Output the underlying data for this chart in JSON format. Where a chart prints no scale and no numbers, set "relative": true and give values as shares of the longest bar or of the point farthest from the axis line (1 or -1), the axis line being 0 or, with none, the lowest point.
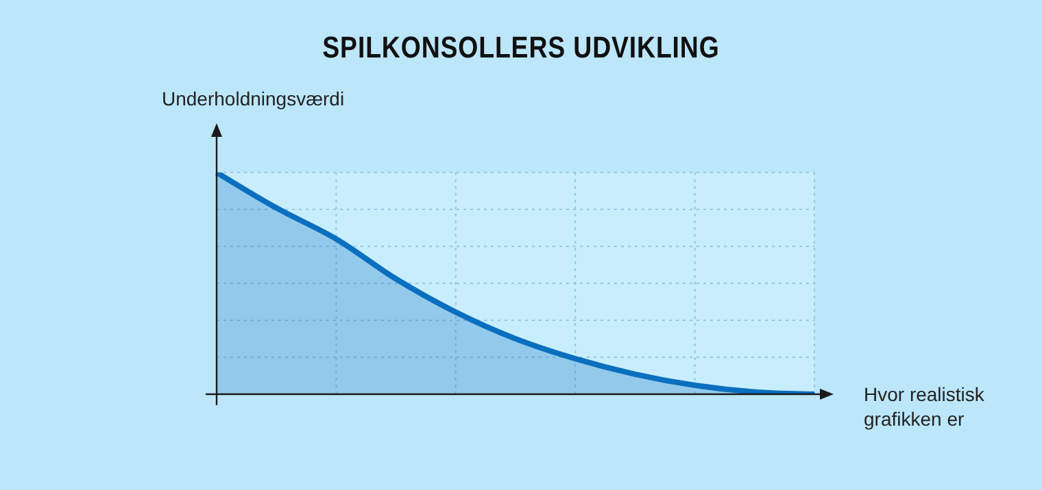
{
  "chart_data": {
    "type": "area",
    "title": "SPILKONSOLLERS UDVIKLING",
    "ylabel": "Underholdningsværdi",
    "xlabel": "Hvor realistisk grafikken er",
    "relative": true,
    "grid": true,
    "categories": [
      null,
      null,
      null,
      null,
      null,
      null,
      null,
      null,
      null,
      null,
      null
    ],
    "series": [
      {
        "color": "#0b6fbf",
        "values": [
          1,
          0.84,
          0.7,
          0.52,
          0.37,
          0.25,
          0.16,
          0.09,
          0.04,
          0.01,
          0
        ]
      }
    ]
  }
}
